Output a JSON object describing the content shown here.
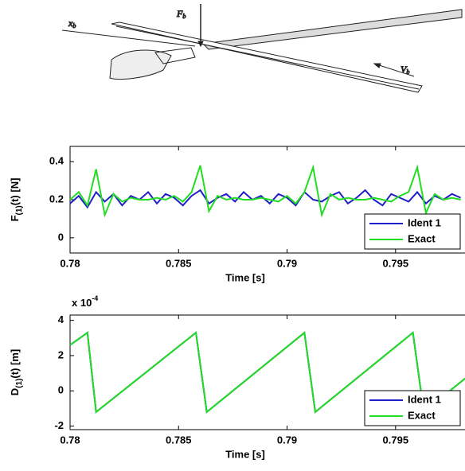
{
  "diagram": {
    "labels": [
      {
        "text": "F",
        "sub": "b"
      },
      {
        "text": "x",
        "sub": "b"
      },
      {
        "text": "V",
        "sub": "b"
      }
    ]
  },
  "chart_data": [
    {
      "type": "line",
      "ylabel": {
        "main": "F",
        "sub": "(1)",
        "rest": "(t) [N]"
      },
      "xlabel": "Time [s]",
      "x": [
        0.78,
        0.7804,
        0.7808,
        0.7812,
        0.7816,
        0.782,
        0.7824,
        0.7828,
        0.7832,
        0.7836,
        0.784,
        0.7844,
        0.7848,
        0.7852,
        0.7856,
        0.786,
        0.7864,
        0.7868,
        0.7872,
        0.7876,
        0.788,
        0.7884,
        0.7888,
        0.7892,
        0.7896,
        0.79,
        0.7904,
        0.7908,
        0.7912,
        0.7916,
        0.792,
        0.7924,
        0.7928,
        0.7932,
        0.7936,
        0.794,
        0.7944,
        0.7948,
        0.7952,
        0.7956,
        0.796,
        0.7964,
        0.7968,
        0.7972,
        0.7976,
        0.798
      ],
      "series": [
        {
          "name": "Ident 1",
          "color": "#1f1fc8",
          "values": [
            0.18,
            0.22,
            0.16,
            0.24,
            0.19,
            0.23,
            0.17,
            0.22,
            0.2,
            0.24,
            0.18,
            0.23,
            0.21,
            0.17,
            0.22,
            0.25,
            0.18,
            0.21,
            0.23,
            0.19,
            0.24,
            0.2,
            0.22,
            0.18,
            0.23,
            0.21,
            0.17,
            0.24,
            0.2,
            0.19,
            0.22,
            0.24,
            0.18,
            0.21,
            0.25,
            0.2,
            0.17,
            0.23,
            0.21,
            0.19,
            0.24,
            0.18,
            0.22,
            0.2,
            0.23,
            0.21
          ]
        },
        {
          "name": "Exact",
          "color": "#22dd22",
          "values": [
            0.2,
            0.24,
            0.17,
            0.36,
            0.12,
            0.23,
            0.19,
            0.21,
            0.2,
            0.2,
            0.21,
            0.2,
            0.22,
            0.19,
            0.24,
            0.38,
            0.14,
            0.22,
            0.2,
            0.21,
            0.2,
            0.2,
            0.21,
            0.2,
            0.19,
            0.22,
            0.18,
            0.24,
            0.37,
            0.12,
            0.23,
            0.2,
            0.21,
            0.2,
            0.2,
            0.21,
            0.2,
            0.19,
            0.22,
            0.24,
            0.37,
            0.13,
            0.23,
            0.2,
            0.21,
            0.2
          ]
        }
      ],
      "xlim": [
        0.78,
        0.7982
      ],
      "xticks": [
        0.78,
        0.785,
        0.79,
        0.795
      ],
      "ylim": [
        -0.08,
        0.48
      ],
      "yticks": [
        0,
        0.2,
        0.4
      ],
      "legend": "lower right"
    },
    {
      "type": "line",
      "ylabel": {
        "main": "D",
        "sub": "(1)",
        "rest": "(t) [m]"
      },
      "xlabel": "Time [s]",
      "multiplier": {
        "base": "x 10",
        "exp": "-4"
      },
      "x": [
        0.78,
        0.7808,
        0.7812,
        0.7858,
        0.7863,
        0.7908,
        0.7913,
        0.7958,
        0.7963,
        0.7982
      ],
      "series": [
        {
          "name": "Ident 1",
          "color": "#1f1fc8",
          "values": [
            2.6,
            3.3,
            -1.2,
            3.3,
            -1.2,
            3.3,
            -1.2,
            3.3,
            -1.2,
            0.7
          ]
        },
        {
          "name": "Exact",
          "color": "#22dd22",
          "values": [
            2.6,
            3.3,
            -1.2,
            3.3,
            -1.2,
            3.3,
            -1.2,
            3.3,
            -1.2,
            0.7
          ]
        }
      ],
      "xlim": [
        0.78,
        0.7982
      ],
      "xticks": [
        0.78,
        0.785,
        0.79,
        0.795
      ],
      "ylim": [
        -2.2,
        4.3
      ],
      "yticks": [
        -2,
        0,
        2,
        4
      ],
      "legend": "lower right"
    }
  ]
}
